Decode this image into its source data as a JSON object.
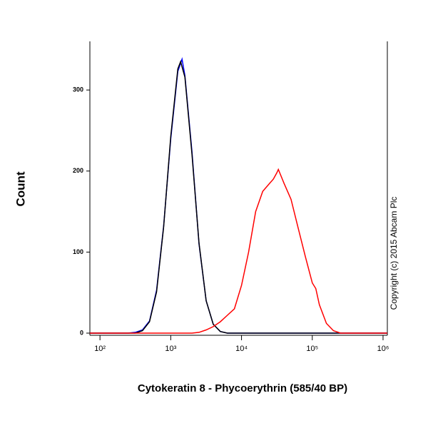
{
  "chart_data": {
    "type": "line",
    "x_label": "Cytokeratin 8 - Phycoerythrin (585/40 BP)",
    "y_label": "Count",
    "annotation": "Copyright (c) 2015 Abcam Plc",
    "log_x": true,
    "xlim": [
      72,
      1150000
    ],
    "ylim": [
      0,
      360
    ],
    "xticks": [
      {
        "value": 100,
        "label": "10²"
      },
      {
        "value": 1000,
        "label": "10³"
      },
      {
        "value": 10000,
        "label": "10⁴"
      },
      {
        "value": 100000,
        "label": "10⁵"
      },
      {
        "value": 1000000,
        "label": "10⁶"
      }
    ],
    "yticks": [
      0,
      100,
      200,
      300
    ],
    "series": [
      {
        "color": "#0000ff",
        "x": [
          72,
          251,
          316,
          398,
          501,
          631,
          794,
          1000,
          1259,
          1445,
          1585,
          1995,
          2512,
          3162,
          3981,
          5012,
          6310,
          1150000
        ],
        "values": [
          0,
          0,
          1,
          4,
          15,
          53,
          132,
          240,
          323,
          338,
          318,
          224,
          110,
          40,
          11,
          2,
          0,
          0
        ]
      },
      {
        "color": "#000000",
        "x": [
          72,
          251,
          316,
          398,
          501,
          631,
          794,
          1000,
          1259,
          1380,
          1585,
          1995,
          2512,
          3162,
          3981,
          5012,
          6310,
          1150000
        ],
        "values": [
          0,
          0,
          0,
          3,
          14,
          51,
          131,
          243,
          326,
          335,
          316,
          221,
          111,
          40,
          11,
          2,
          0,
          0
        ]
      },
      {
        "color": "#ff0000",
        "x": [
          72,
          1995,
          2512,
          3162,
          3981,
          5012,
          6310,
          7943,
          10000,
          12589,
          15849,
          19953,
          25119,
          28184,
          31623,
          33113,
          39811,
          50119,
          63096,
          79433,
          100000,
          112202,
          125893,
          158489,
          199526,
          251189,
          1150000
        ],
        "values": [
          0,
          0,
          1,
          4,
          8,
          14,
          22,
          30,
          59,
          100,
          150,
          175,
          185,
          190,
          198,
          202,
          185,
          165,
          130,
          95,
          62,
          55,
          35,
          12,
          3,
          0,
          0
        ]
      }
    ]
  }
}
